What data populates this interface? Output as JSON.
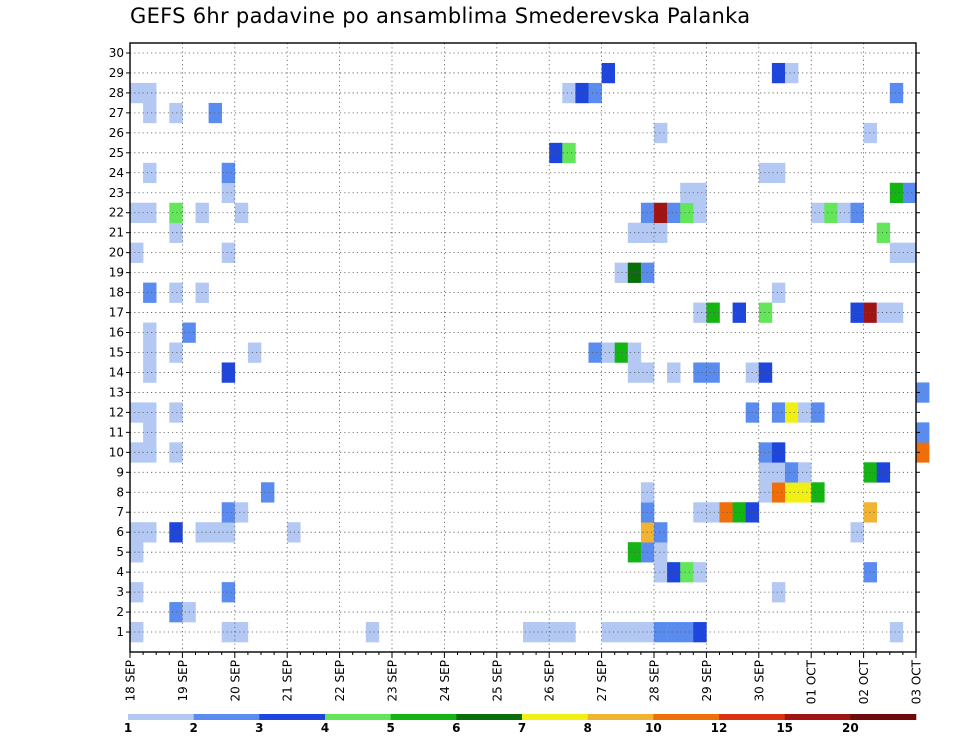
{
  "title": "GEFS 6hr padavine po ansamblima Smederevska Palanka",
  "chart_data": {
    "type": "heatmap",
    "title": "GEFS 6hr padavine po ansamblima Smederevska Palanka",
    "x_tick_labels": [
      "18 SEP",
      "19 SEP",
      "20 SEP",
      "21 SEP",
      "22 SEP",
      "23 SEP",
      "24 SEP",
      "25 SEP",
      "26 SEP",
      "27 SEP",
      "28 SEP",
      "29 SEP",
      "30 SEP",
      "01 OCT",
      "02 OCT",
      "03 OCT"
    ],
    "y_tick_labels": [
      "1",
      "2",
      "3",
      "4",
      "5",
      "6",
      "7",
      "8",
      "9",
      "10",
      "11",
      "12",
      "13",
      "14",
      "15",
      "16",
      "17",
      "18",
      "19",
      "20",
      "21",
      "22",
      "23",
      "24",
      "25",
      "26",
      "27",
      "28",
      "29",
      "30"
    ],
    "xlim": [
      "2023-09-18 00Z",
      "2023-10-03 00Z"
    ],
    "x_step_hours": 6,
    "ylim": [
      0,
      30
    ],
    "grid": true,
    "legend": {
      "position": "bottom",
      "thresholds": [
        "1",
        "2",
        "3",
        "4",
        "5",
        "6",
        "7",
        "8",
        "10",
        "12",
        "15",
        "20"
      ],
      "colors": [
        "#b4c8f4",
        "#5a8cf0",
        "#1e46dc",
        "#64e65a",
        "#14b414",
        "#0a6e0a",
        "#f0f014",
        "#f0b432",
        "#f06e0a",
        "#dc3214",
        "#a01414",
        "#6e0a0a"
      ]
    },
    "cells_format": "[member, step, class] step = 6-hour interval index from 18 SEP 00Z; class = legend color index",
    "cells": [
      [
        1,
        0,
        0
      ],
      [
        1,
        7,
        0
      ],
      [
        1,
        8,
        0
      ],
      [
        1,
        18,
        0
      ],
      [
        1,
        30,
        0
      ],
      [
        1,
        31,
        0
      ],
      [
        1,
        32,
        0
      ],
      [
        1,
        33,
        0
      ],
      [
        1,
        36,
        0
      ],
      [
        1,
        37,
        0
      ],
      [
        1,
        38,
        0
      ],
      [
        1,
        39,
        0
      ],
      [
        1,
        40,
        1
      ],
      [
        1,
        41,
        1
      ],
      [
        1,
        42,
        1
      ],
      [
        1,
        43,
        2
      ],
      [
        1,
        58,
        0
      ],
      [
        2,
        3,
        1
      ],
      [
        2,
        4,
        0
      ],
      [
        3,
        0,
        0
      ],
      [
        3,
        7,
        1
      ],
      [
        3,
        49,
        0
      ],
      [
        4,
        40,
        0
      ],
      [
        4,
        41,
        2
      ],
      [
        4,
        42,
        3
      ],
      [
        4,
        43,
        0
      ],
      [
        4,
        56,
        1
      ],
      [
        5,
        0,
        0
      ],
      [
        5,
        38,
        4
      ],
      [
        5,
        39,
        1
      ],
      [
        5,
        40,
        0
      ],
      [
        6,
        0,
        0
      ],
      [
        6,
        1,
        0
      ],
      [
        6,
        3,
        2
      ],
      [
        6,
        5,
        0
      ],
      [
        6,
        6,
        0
      ],
      [
        6,
        7,
        0
      ],
      [
        6,
        12,
        0
      ],
      [
        6,
        39,
        7
      ],
      [
        6,
        40,
        1
      ],
      [
        6,
        55,
        0
      ],
      [
        7,
        7,
        1
      ],
      [
        7,
        8,
        0
      ],
      [
        7,
        39,
        1
      ],
      [
        7,
        43,
        0
      ],
      [
        7,
        44,
        0
      ],
      [
        7,
        45,
        8
      ],
      [
        7,
        46,
        4
      ],
      [
        7,
        47,
        2
      ],
      [
        7,
        56,
        7
      ],
      [
        8,
        10,
        1
      ],
      [
        8,
        39,
        0
      ],
      [
        8,
        48,
        0
      ],
      [
        8,
        49,
        8
      ],
      [
        8,
        50,
        6
      ],
      [
        8,
        51,
        6
      ],
      [
        8,
        52,
        4
      ],
      [
        9,
        48,
        0
      ],
      [
        9,
        49,
        0
      ],
      [
        9,
        50,
        1
      ],
      [
        9,
        51,
        0
      ],
      [
        9,
        56,
        4
      ],
      [
        9,
        57,
        2
      ],
      [
        10,
        0,
        0
      ],
      [
        10,
        1,
        0
      ],
      [
        10,
        3,
        0
      ],
      [
        10,
        48,
        1
      ],
      [
        10,
        49,
        2
      ],
      [
        10,
        60,
        8
      ],
      [
        11,
        1,
        0
      ],
      [
        11,
        60,
        1
      ],
      [
        12,
        0,
        0
      ],
      [
        12,
        1,
        0
      ],
      [
        12,
        3,
        0
      ],
      [
        12,
        47,
        1
      ],
      [
        12,
        49,
        1
      ],
      [
        12,
        50,
        6
      ],
      [
        12,
        51,
        0
      ],
      [
        12,
        52,
        1
      ],
      [
        13,
        60,
        1
      ],
      [
        14,
        1,
        0
      ],
      [
        14,
        7,
        2
      ],
      [
        14,
        38,
        0
      ],
      [
        14,
        39,
        0
      ],
      [
        14,
        41,
        0
      ],
      [
        14,
        43,
        1
      ],
      [
        14,
        44,
        1
      ],
      [
        14,
        47,
        0
      ],
      [
        14,
        48,
        2
      ],
      [
        15,
        1,
        0
      ],
      [
        15,
        3,
        0
      ],
      [
        15,
        9,
        0
      ],
      [
        15,
        35,
        1
      ],
      [
        15,
        36,
        0
      ],
      [
        15,
        37,
        4
      ],
      [
        15,
        38,
        0
      ],
      [
        16,
        1,
        0
      ],
      [
        16,
        4,
        1
      ],
      [
        17,
        43,
        0
      ],
      [
        17,
        44,
        4
      ],
      [
        17,
        46,
        2
      ],
      [
        17,
        48,
        3
      ],
      [
        17,
        55,
        2
      ],
      [
        17,
        56,
        10
      ],
      [
        17,
        57,
        0
      ],
      [
        17,
        58,
        0
      ],
      [
        18,
        1,
        1
      ],
      [
        18,
        3,
        0
      ],
      [
        18,
        5,
        0
      ],
      [
        18,
        49,
        0
      ],
      [
        19,
        37,
        0
      ],
      [
        19,
        38,
        5
      ],
      [
        19,
        39,
        1
      ],
      [
        20,
        0,
        0
      ],
      [
        20,
        7,
        0
      ],
      [
        20,
        58,
        0
      ],
      [
        20,
        59,
        0
      ],
      [
        21,
        3,
        0
      ],
      [
        21,
        38,
        0
      ],
      [
        21,
        39,
        0
      ],
      [
        21,
        40,
        0
      ],
      [
        21,
        57,
        3
      ],
      [
        22,
        0,
        0
      ],
      [
        22,
        1,
        0
      ],
      [
        22,
        3,
        3
      ],
      [
        22,
        5,
        0
      ],
      [
        22,
        8,
        0
      ],
      [
        22,
        39,
        1
      ],
      [
        22,
        40,
        10
      ],
      [
        22,
        41,
        1
      ],
      [
        22,
        42,
        3
      ],
      [
        22,
        43,
        0
      ],
      [
        22,
        52,
        0
      ],
      [
        22,
        53,
        3
      ],
      [
        22,
        54,
        0
      ],
      [
        22,
        55,
        1
      ],
      [
        23,
        7,
        0
      ],
      [
        23,
        42,
        0
      ],
      [
        23,
        43,
        0
      ],
      [
        23,
        58,
        4
      ],
      [
        23,
        59,
        1
      ],
      [
        24,
        1,
        0
      ],
      [
        24,
        7,
        1
      ],
      [
        24,
        48,
        0
      ],
      [
        24,
        49,
        0
      ],
      [
        25,
        32,
        2
      ],
      [
        25,
        33,
        3
      ],
      [
        26,
        40,
        0
      ],
      [
        26,
        56,
        0
      ],
      [
        27,
        1,
        0
      ],
      [
        27,
        3,
        0
      ],
      [
        27,
        6,
        1
      ],
      [
        28,
        0,
        0
      ],
      [
        28,
        1,
        0
      ],
      [
        28,
        33,
        0
      ],
      [
        28,
        34,
        2
      ],
      [
        28,
        35,
        1
      ],
      [
        28,
        58,
        1
      ],
      [
        29,
        36,
        2
      ],
      [
        29,
        49,
        2
      ],
      [
        29,
        50,
        0
      ]
    ]
  }
}
